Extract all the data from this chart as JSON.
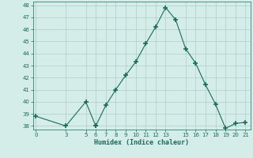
{
  "xlabel": "Humidex (Indice chaleur)",
  "x": [
    0,
    3,
    5,
    6,
    6,
    7,
    8,
    9,
    10,
    11,
    12,
    13,
    14,
    15,
    16,
    17,
    18,
    19,
    20,
    21
  ],
  "y": [
    38.8,
    38.0,
    40.0,
    38.0,
    38.0,
    39.7,
    41.0,
    42.2,
    43.3,
    44.8,
    46.2,
    47.8,
    46.8,
    44.4,
    43.2,
    41.4,
    39.8,
    37.8,
    38.2,
    38.3
  ],
  "line_color": "#1a6b5a",
  "bg_color": "#d4ede9",
  "grid_color": "#b0cdc8",
  "ylim": [
    37.7,
    48.3
  ],
  "xlim": [
    -0.3,
    21.5
  ],
  "yticks": [
    38,
    39,
    40,
    41,
    42,
    43,
    44,
    45,
    46,
    47,
    48
  ],
  "xticks": [
    0,
    3,
    5,
    6,
    7,
    8,
    9,
    10,
    11,
    12,
    13,
    15,
    16,
    17,
    18,
    19,
    20,
    21
  ]
}
